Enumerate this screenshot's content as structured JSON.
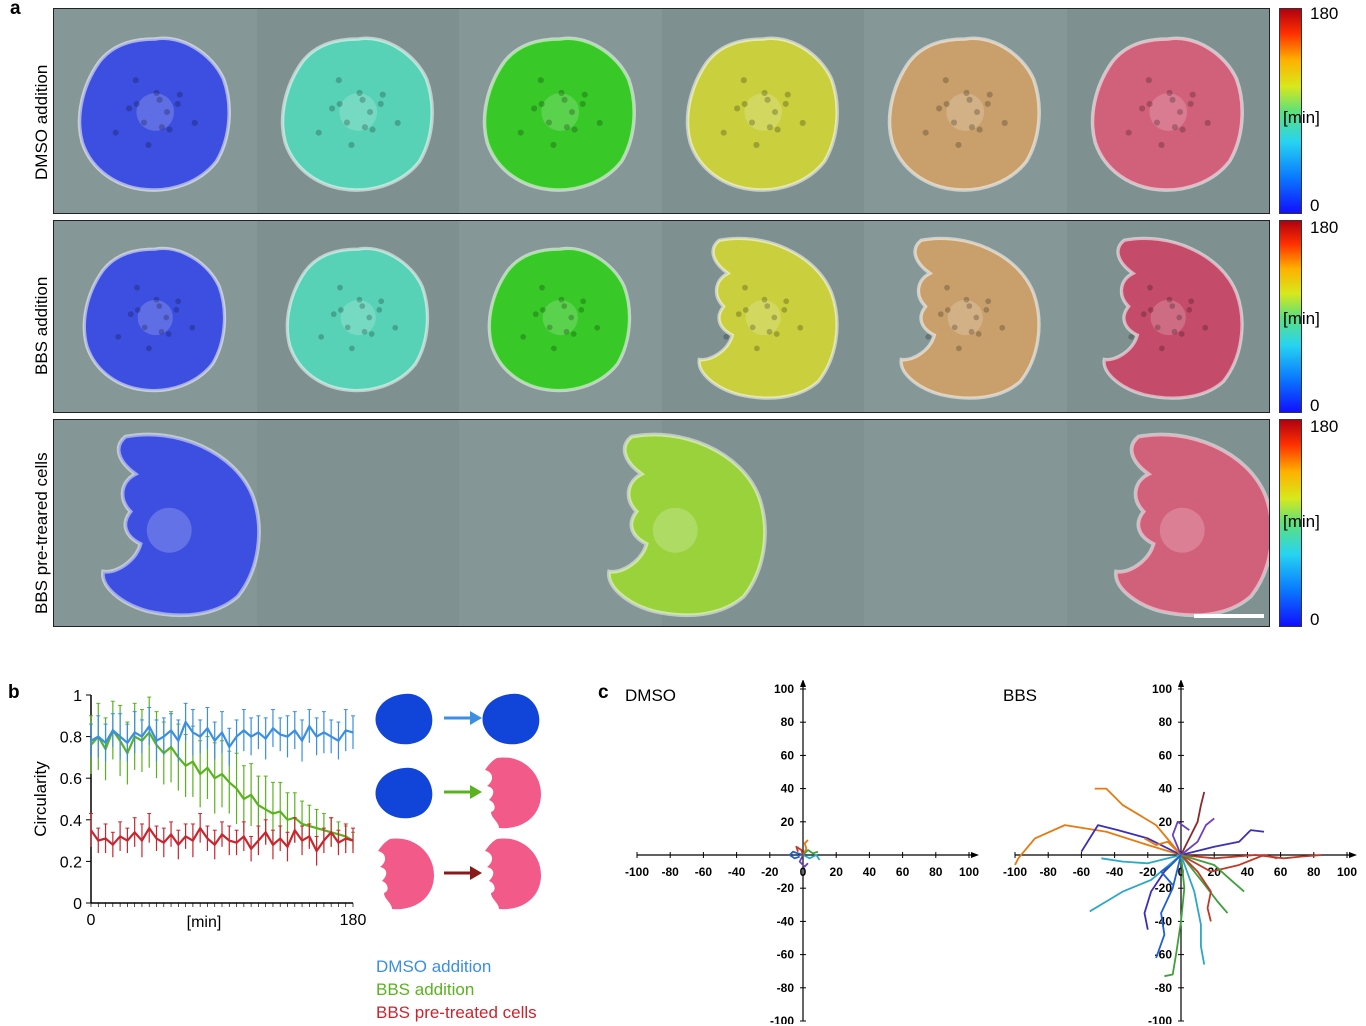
{
  "panel_a": {
    "label": "a",
    "rows": [
      {
        "label": "DMSO addition",
        "cells": [
          {
            "color": "#3c4fe0",
            "shape": "round"
          },
          {
            "color": "#58d2b6",
            "shape": "round"
          },
          {
            "color": "#38c928",
            "shape": "round"
          },
          {
            "color": "#c9cf3d",
            "shape": "round"
          },
          {
            "color": "#c9a06c",
            "shape": "round"
          },
          {
            "color": "#d1607a",
            "shape": "round"
          }
        ]
      },
      {
        "label": "BBS addition",
        "cells": [
          {
            "color": "#3c4fe0",
            "shape": "round"
          },
          {
            "color": "#58d2b6",
            "shape": "round"
          },
          {
            "color": "#38c928",
            "shape": "round"
          },
          {
            "color": "#c9cf3d",
            "shape": "crescent"
          },
          {
            "color": "#c9a06c",
            "shape": "crescent"
          },
          {
            "color": "#c44c6a",
            "shape": "crescent"
          }
        ]
      },
      {
        "label": "BBS pre-treared cells",
        "cells": [
          {
            "color": "#3c4fe0",
            "shape": "crescent"
          },
          {
            "color": "#9ad23c",
            "shape": "crescent"
          },
          {
            "color": "#d1607a",
            "shape": "crescent"
          }
        ]
      }
    ],
    "colorbar": {
      "max": "180",
      "unit": "[min]",
      "min": "0"
    }
  },
  "panel_b": {
    "label": "b",
    "legend": [
      {
        "text": "DMSO addition",
        "color": "#3a8fe0"
      },
      {
        "text": "BBS addition",
        "color": "#5ab31e"
      },
      {
        "text": "BBS pre-treated cells",
        "color": "#c8252f"
      }
    ],
    "schematic_arrow_colors": [
      "#3a8fe0",
      "#5ab31e",
      "#8a1a1a"
    ],
    "schematic_colors": {
      "round": "#1144d8",
      "crescent": "#f25a8a"
    }
  },
  "panel_c": {
    "label": "c"
  },
  "chart_data": [
    {
      "type": "line",
      "ylabel": "Circularity",
      "xlabel": "[min]",
      "xlim": [
        0,
        180
      ],
      "ylim": [
        0,
        1
      ],
      "xticks": [
        "0",
        "180"
      ],
      "yticks": [
        "0",
        "0.2",
        "0.4",
        "0.6",
        "0.8",
        "1"
      ],
      "x": [
        0,
        5,
        10,
        15,
        20,
        25,
        30,
        35,
        40,
        45,
        50,
        55,
        60,
        65,
        70,
        75,
        80,
        85,
        90,
        95,
        100,
        105,
        110,
        115,
        120,
        125,
        130,
        135,
        140,
        145,
        150,
        155,
        160,
        165,
        170,
        175,
        180
      ],
      "series": [
        {
          "name": "DMSO addition",
          "color": "#3a8fe0",
          "values": [
            0.78,
            0.8,
            0.77,
            0.83,
            0.8,
            0.77,
            0.82,
            0.8,
            0.85,
            0.78,
            0.8,
            0.83,
            0.78,
            0.87,
            0.82,
            0.8,
            0.84,
            0.78,
            0.82,
            0.75,
            0.8,
            0.83,
            0.8,
            0.82,
            0.79,
            0.84,
            0.81,
            0.8,
            0.83,
            0.78,
            0.85,
            0.8,
            0.82,
            0.8,
            0.78,
            0.83,
            0.82
          ],
          "errors": [
            0.08,
            0.1,
            0.09,
            0.08,
            0.11,
            0.09,
            0.1,
            0.08,
            0.09,
            0.1,
            0.09,
            0.08,
            0.1,
            0.09,
            0.11,
            0.08,
            0.1,
            0.09,
            0.1,
            0.09,
            0.08,
            0.1,
            0.09,
            0.08,
            0.1,
            0.09,
            0.08,
            0.1,
            0.09,
            0.1,
            0.08,
            0.09,
            0.1,
            0.08,
            0.09,
            0.1,
            0.08
          ]
        },
        {
          "name": "BBS addition",
          "color": "#5ab31e",
          "values": [
            0.76,
            0.8,
            0.74,
            0.83,
            0.78,
            0.72,
            0.8,
            0.78,
            0.82,
            0.76,
            0.72,
            0.75,
            0.7,
            0.66,
            0.68,
            0.62,
            0.65,
            0.6,
            0.62,
            0.58,
            0.55,
            0.5,
            0.52,
            0.47,
            0.45,
            0.43,
            0.44,
            0.4,
            0.41,
            0.38,
            0.37,
            0.36,
            0.35,
            0.34,
            0.33,
            0.32,
            0.3
          ],
          "errors": [
            0.14,
            0.16,
            0.15,
            0.14,
            0.17,
            0.15,
            0.16,
            0.15,
            0.17,
            0.16,
            0.15,
            0.17,
            0.16,
            0.15,
            0.17,
            0.16,
            0.15,
            0.17,
            0.16,
            0.15,
            0.17,
            0.16,
            0.15,
            0.14,
            0.16,
            0.15,
            0.14,
            0.13,
            0.12,
            0.11,
            0.1,
            0.09,
            0.08,
            0.07,
            0.06,
            0.05,
            0.04
          ]
        },
        {
          "name": "BBS pre-treated cells",
          "color": "#c8252f",
          "values": [
            0.35,
            0.3,
            0.31,
            0.28,
            0.32,
            0.3,
            0.34,
            0.3,
            0.36,
            0.31,
            0.29,
            0.33,
            0.28,
            0.32,
            0.3,
            0.36,
            0.31,
            0.28,
            0.33,
            0.3,
            0.29,
            0.32,
            0.26,
            0.3,
            0.34,
            0.28,
            0.31,
            0.27,
            0.35,
            0.3,
            0.32,
            0.25,
            0.3,
            0.34,
            0.29,
            0.31,
            0.3
          ],
          "errors": [
            0.08,
            0.06,
            0.07,
            0.06,
            0.07,
            0.06,
            0.07,
            0.08,
            0.07,
            0.06,
            0.07,
            0.06,
            0.07,
            0.06,
            0.08,
            0.07,
            0.06,
            0.07,
            0.06,
            0.07,
            0.06,
            0.07,
            0.06,
            0.07,
            0.06,
            0.07,
            0.06,
            0.07,
            0.06,
            0.07,
            0.06,
            0.07,
            0.06,
            0.07,
            0.06,
            0.07,
            0.06
          ]
        }
      ]
    },
    {
      "type": "line",
      "title": "DMSO",
      "xlim": [
        -100,
        100
      ],
      "ylim": [
        -100,
        100
      ],
      "xticks": [
        -100,
        -80,
        -60,
        -40,
        -20,
        0,
        20,
        40,
        60,
        80,
        100
      ],
      "yticks": [
        100,
        80,
        60,
        40,
        20,
        -20,
        -40,
        -60,
        -80,
        -100
      ],
      "tracks": [
        {
          "color": "#1f5fd0",
          "points": [
            [
              0,
              0
            ],
            [
              -3,
              1
            ],
            [
              -6,
              2
            ],
            [
              -8,
              0
            ],
            [
              -5,
              -2
            ],
            [
              -2,
              -1
            ]
          ]
        },
        {
          "color": "#e67a12",
          "points": [
            [
              0,
              0
            ],
            [
              2,
              4
            ],
            [
              1,
              7
            ],
            [
              3,
              9
            ]
          ]
        },
        {
          "color": "#2aa8c8",
          "points": [
            [
              0,
              0
            ],
            [
              4,
              -2
            ],
            [
              8,
              0
            ],
            [
              10,
              -3
            ]
          ]
        },
        {
          "color": "#6a3fc0",
          "points": [
            [
              0,
              0
            ],
            [
              -2,
              -4
            ],
            [
              1,
              -7
            ],
            [
              3,
              -5
            ]
          ]
        },
        {
          "color": "#3da03a",
          "points": [
            [
              0,
              0
            ],
            [
              3,
              3
            ],
            [
              6,
              1
            ],
            [
              9,
              2
            ]
          ]
        },
        {
          "color": "#c0392b",
          "points": [
            [
              0,
              0
            ],
            [
              -1,
              3
            ],
            [
              -4,
              5
            ],
            [
              -3,
              2
            ]
          ]
        }
      ]
    },
    {
      "type": "line",
      "title": "BBS",
      "xlim": [
        -100,
        100
      ],
      "ylim": [
        -100,
        100
      ],
      "xticks": [
        -100,
        -80,
        -60,
        -40,
        -20,
        0,
        20,
        40,
        60,
        80,
        100
      ],
      "yticks": [
        100,
        80,
        60,
        40,
        20,
        -20,
        -40,
        -60,
        -80,
        -100
      ],
      "tracks": [
        {
          "color": "#e67a12",
          "points": [
            [
              0,
              0
            ],
            [
              -20,
              6
            ],
            [
              -45,
              14
            ],
            [
              -70,
              18
            ],
            [
              -88,
              10
            ],
            [
              -98,
              -2
            ],
            [
              -100,
              -6
            ]
          ]
        },
        {
          "color": "#e67a12",
          "points": [
            [
              0,
              0
            ],
            [
              -15,
              18
            ],
            [
              -35,
              30
            ],
            [
              -45,
              40
            ],
            [
              -52,
              40
            ]
          ]
        },
        {
          "color": "#3b2fb8",
          "points": [
            [
              0,
              0
            ],
            [
              -20,
              10
            ],
            [
              -38,
              15
            ],
            [
              -50,
              18
            ],
            [
              -55,
              10
            ],
            [
              -60,
              2
            ]
          ]
        },
        {
          "color": "#c0392b",
          "points": [
            [
              0,
              0
            ],
            [
              20,
              -2
            ],
            [
              45,
              0
            ],
            [
              62,
              -2
            ],
            [
              72,
              -1
            ],
            [
              85,
              0
            ]
          ]
        },
        {
          "color": "#c0392b",
          "points": [
            [
              0,
              0
            ],
            [
              18,
              -10
            ],
            [
              35,
              -6
            ],
            [
              50,
              0
            ],
            [
              58,
              -2
            ]
          ]
        },
        {
          "color": "#3b2fb8",
          "points": [
            [
              0,
              0
            ],
            [
              20,
              5
            ],
            [
              35,
              8
            ],
            [
              42,
              15
            ],
            [
              50,
              14
            ]
          ]
        },
        {
          "color": "#8a2a2a",
          "points": [
            [
              0,
              0
            ],
            [
              5,
              10
            ],
            [
              10,
              20
            ],
            [
              12,
              30
            ],
            [
              14,
              38
            ]
          ]
        },
        {
          "color": "#6a3fc0",
          "points": [
            [
              0,
              0
            ],
            [
              10,
              8
            ],
            [
              15,
              18
            ],
            [
              20,
              22
            ]
          ]
        },
        {
          "color": "#2aa8c8",
          "points": [
            [
              0,
              0
            ],
            [
              -18,
              -15
            ],
            [
              -35,
              -22
            ],
            [
              -45,
              -28
            ],
            [
              -55,
              -34
            ]
          ]
        },
        {
          "color": "#1f5fd0",
          "points": [
            [
              0,
              0
            ],
            [
              -5,
              -20
            ],
            [
              -12,
              -35
            ],
            [
              -10,
              -48
            ],
            [
              -15,
              -62
            ]
          ]
        },
        {
          "color": "#3da03a",
          "points": [
            [
              0,
              0
            ],
            [
              2,
              -20
            ],
            [
              0,
              -40
            ],
            [
              -3,
              -60
            ],
            [
              -5,
              -72
            ],
            [
              -10,
              -73
            ]
          ]
        },
        {
          "color": "#2aa8c8",
          "points": [
            [
              0,
              0
            ],
            [
              8,
              -22
            ],
            [
              12,
              -42
            ],
            [
              12,
              -55
            ],
            [
              14,
              -66
            ]
          ]
        },
        {
          "color": "#3da03a",
          "points": [
            [
              0,
              0
            ],
            [
              12,
              -15
            ],
            [
              22,
              -28
            ],
            [
              28,
              -35
            ]
          ]
        },
        {
          "color": "#c0392b",
          "points": [
            [
              0,
              0
            ],
            [
              10,
              -10
            ],
            [
              18,
              -22
            ],
            [
              16,
              -32
            ],
            [
              18,
              -40
            ]
          ]
        },
        {
          "color": "#3b2fb8",
          "points": [
            [
              0,
              0
            ],
            [
              -10,
              -10
            ],
            [
              -18,
              -22
            ],
            [
              -22,
              -35
            ],
            [
              -20,
              -45
            ]
          ]
        },
        {
          "color": "#2aa8c8",
          "points": [
            [
              0,
              0
            ],
            [
              -20,
              -5
            ],
            [
              -35,
              -4
            ],
            [
              -48,
              -2
            ]
          ]
        },
        {
          "color": "#e67a12",
          "points": [
            [
              0,
              0
            ],
            [
              -8,
              8
            ],
            [
              -15,
              6
            ],
            [
              -22,
              10
            ]
          ]
        },
        {
          "color": "#3da03a",
          "points": [
            [
              0,
              0
            ],
            [
              20,
              -6
            ],
            [
              30,
              -15
            ],
            [
              38,
              -22
            ]
          ]
        },
        {
          "color": "#6a3fc0",
          "points": [
            [
              0,
              0
            ],
            [
              -5,
              12
            ],
            [
              -2,
              20
            ],
            [
              5,
              15
            ]
          ]
        },
        {
          "color": "#1f5fd0",
          "points": [
            [
              0,
              0
            ],
            [
              -6,
              -6
            ],
            [
              -12,
              -10
            ],
            [
              -5,
              -18
            ]
          ]
        }
      ]
    }
  ]
}
